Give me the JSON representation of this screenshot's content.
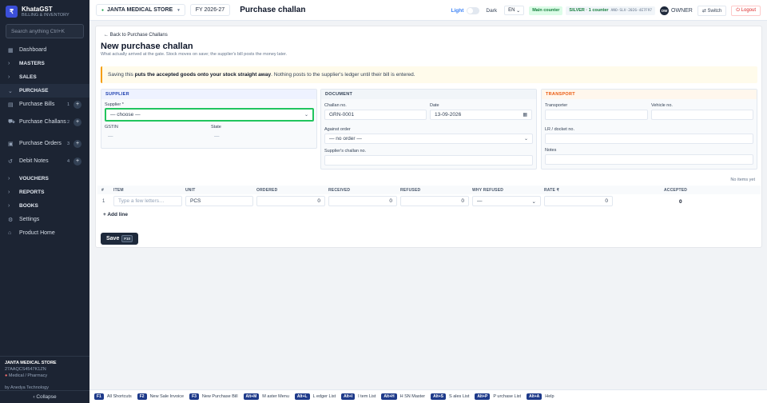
{
  "brand": {
    "logo": "₹",
    "name": "KhataGST",
    "sub": "BILLING & INVENTORY"
  },
  "sidebar": {
    "search": "Search anything   Ctrl+K",
    "items": [
      {
        "label": "Dashboard",
        "icon": "grid-icon"
      },
      {
        "label": "MASTERS",
        "section": true
      },
      {
        "label": "SALES",
        "section": true
      },
      {
        "label": "PURCHASE",
        "section": true,
        "expanded": true
      }
    ],
    "purchase_items": [
      {
        "label": "Purchase Bills",
        "count": "1"
      },
      {
        "label": "Purchase Challans",
        "count": "2"
      },
      {
        "label": "Purchase Orders",
        "count": "3"
      },
      {
        "label": "Debit Notes",
        "count": "4"
      }
    ],
    "bottom_items": [
      {
        "label": "VOUCHERS"
      },
      {
        "label": "REPORTS"
      },
      {
        "label": "BOOKS"
      },
      {
        "label": "Settings"
      },
      {
        "label": "Product Home"
      }
    ],
    "footer": {
      "store": "JANTA MEDICAL STORE",
      "gstin": "27AAQCS4547K1ZN",
      "category": "Medical / Pharmacy",
      "by": "by Anedya Technology"
    },
    "collapse": "‹ Collapse"
  },
  "topbar": {
    "store": "JANTA MEDICAL STORE",
    "fy": "FY 2026-27",
    "page_title": "Purchase challan",
    "light": "Light",
    "dark": "Dark",
    "lang": "EN",
    "main_counter": "Main counter",
    "plan": "SILVER · 1 counter",
    "plan_code": "ANO-SLV-2026-4E7F97",
    "avatar": "OW",
    "role": "OWNER",
    "switch": "⇄ Switch",
    "logout": "⏻ Logout"
  },
  "page": {
    "back": "← Back to Purchase Challans",
    "title": "New purchase challan",
    "subtitle": "What actually arrived at the gate. Stock moves on save; the supplier's bill posts the money later.",
    "notice_pre": "Saving this ",
    "notice_bold": "puts the accepted goods onto your stock straight away",
    "notice_post": ". Nothing posts to the supplier's ledger until their bill is entered."
  },
  "supplier": {
    "head": "SUPPLIER",
    "supplier_label": "Supplier *",
    "supplier_value": "— choose —",
    "gstin_label": "GSTIN",
    "gstin_value": "—",
    "state_label": "State",
    "state_value": "—"
  },
  "document": {
    "head": "DOCUMENT",
    "challan_label": "Challan no.",
    "challan_value": "GRN-0001",
    "date_label": "Date",
    "date_value": "13-09-2026",
    "order_label": "Against order",
    "order_value": "— no order —",
    "supp_challan_label": "Supplier's challan no."
  },
  "transport": {
    "head": "TRANSPORT",
    "transporter_label": "Transporter",
    "vehicle_label": "Vehicle no.",
    "lr_label": "LR / docket no.",
    "notes_label": "Notes"
  },
  "lines": {
    "no_items": "No items yet",
    "headers": [
      "#",
      "ITEM",
      "UNIT",
      "ORDERED",
      "RECEIVED",
      "REFUSED",
      "WHY REFUSED",
      "RATE ₹",
      "ACCEPTED"
    ],
    "row": {
      "index": "1",
      "item_placeholder": "Type a few letters…",
      "unit": "PCS",
      "ordered": "0",
      "received": "0",
      "refused": "0",
      "why": "—",
      "rate": "0",
      "accepted": "0"
    },
    "add_line": "+ Add line"
  },
  "save": {
    "label": "Save",
    "key": "F10"
  },
  "shortcuts": [
    {
      "key": "F1",
      "label": "All Shortcuts"
    },
    {
      "key": "F2",
      "label": "New Sale Invoice"
    },
    {
      "key": "F3",
      "label": "New Purchase Bill"
    },
    {
      "key": "Alt+M",
      "label": "M aster Menu"
    },
    {
      "key": "Alt+L",
      "label": "L edger List"
    },
    {
      "key": "Alt+I",
      "label": "I tem List"
    },
    {
      "key": "Alt+H",
      "label": "H SN Master"
    },
    {
      "key": "Alt+S",
      "label": "S ales List"
    },
    {
      "key": "Alt+P",
      "label": "P urchase List"
    },
    {
      "key": "Alt+A",
      "label": "Help"
    }
  ],
  "colors": {
    "sidebar": "#1c2433",
    "accent": "#3b4fd9",
    "focus": "#22c55e",
    "transport_head": "#ea580c",
    "notice": "#fffbeb"
  }
}
